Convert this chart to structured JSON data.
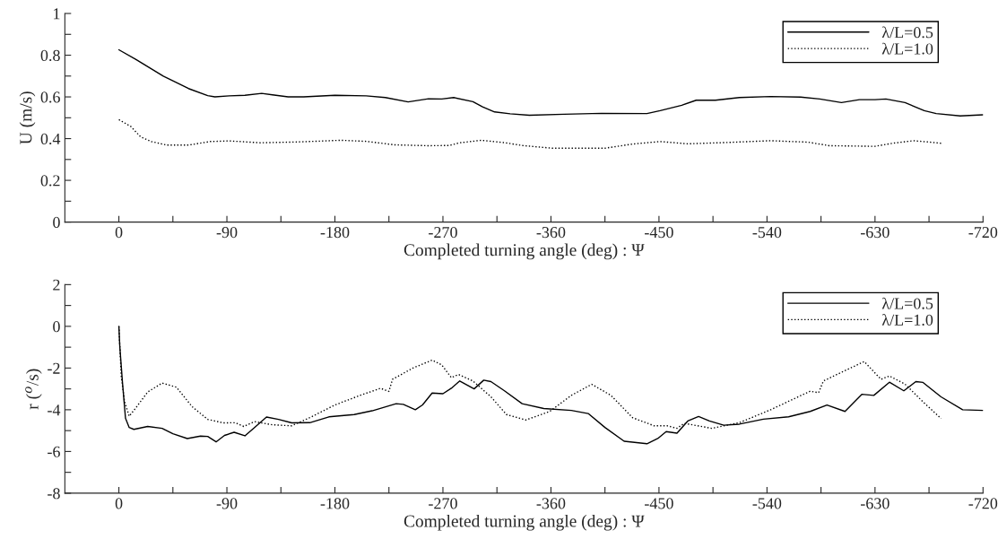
{
  "chart_data": [
    {
      "type": "line",
      "xlabel": "Completed turning angle (deg) : Ψ",
      "ylabel": "U (m/s)",
      "legend": "top right",
      "xlim": [
        45,
        -720
      ],
      "xticks": [
        0,
        {
          "value": -45,
          "label": null
        },
        -90,
        {
          "value": -135,
          "label": null
        },
        -180,
        {
          "value": -225,
          "label": null
        },
        -270,
        {
          "value": -315,
          "label": null
        },
        -360,
        {
          "value": -405,
          "label": null
        },
        -450,
        {
          "value": -495,
          "label": null
        },
        -540,
        {
          "value": -585,
          "label": null
        },
        -630,
        {
          "value": -675,
          "label": null
        },
        -720
      ],
      "ylim": [
        0,
        1
      ],
      "yticks": [
        0,
        {
          "value": 0.1,
          "label": null
        },
        0.2,
        {
          "value": 0.3,
          "label": null
        },
        0.4,
        {
          "value": 0.5,
          "label": null
        },
        0.6,
        {
          "value": 0.7,
          "label": null
        },
        0.8,
        {
          "value": 0.9,
          "label": null
        },
        1
      ],
      "series": [
        {
          "name": "λ/L=0.5",
          "color": "#000000",
          "line_style": "solid",
          "x": [
            0,
            -14,
            -37,
            -58,
            -74,
            -80,
            -92,
            -105,
            -119,
            -128,
            -141,
            -154,
            -180,
            -206,
            -222,
            -241,
            -258,
            -269,
            -279,
            -295,
            -303,
            -313,
            -326,
            -342,
            -371,
            -402,
            -440,
            -451,
            -469,
            -481,
            -497,
            -517,
            -543,
            -568,
            -584,
            -602,
            -617,
            -630,
            -639,
            -655,
            -671,
            -681,
            -701,
            -720
          ],
          "values": [
            0.826,
            0.78,
            0.7,
            0.64,
            0.606,
            0.6,
            0.605,
            0.608,
            0.617,
            0.61,
            0.6,
            0.6,
            0.608,
            0.605,
            0.597,
            0.576,
            0.591,
            0.59,
            0.597,
            0.577,
            0.552,
            0.528,
            0.519,
            0.512,
            0.517,
            0.521,
            0.52,
            0.534,
            0.56,
            0.584,
            0.584,
            0.597,
            0.602,
            0.599,
            0.59,
            0.573,
            0.587,
            0.587,
            0.59,
            0.573,
            0.534,
            0.52,
            0.509,
            0.514
          ]
        },
        {
          "name": "λ/L=1.0",
          "color": "#000000",
          "line_style": "dotted",
          "x": [
            0,
            -10,
            -18,
            -27,
            -40,
            -58,
            -76,
            -92,
            -118,
            -149,
            -185,
            -206,
            -230,
            -258,
            -275,
            -284,
            -302,
            -321,
            -336,
            -361,
            -405,
            -428,
            -451,
            -474,
            -505,
            -543,
            -574,
            -592,
            -630,
            -645,
            -662,
            -678,
            -686
          ],
          "values": [
            0.491,
            0.458,
            0.409,
            0.386,
            0.369,
            0.369,
            0.386,
            0.389,
            0.38,
            0.384,
            0.392,
            0.387,
            0.37,
            0.366,
            0.367,
            0.38,
            0.392,
            0.381,
            0.367,
            0.354,
            0.354,
            0.374,
            0.386,
            0.375,
            0.381,
            0.39,
            0.383,
            0.366,
            0.363,
            0.378,
            0.39,
            0.382,
            0.377
          ]
        }
      ]
    },
    {
      "type": "line",
      "xlabel": "Completed turning angle (deg) : Ψ",
      "ylabel": "r ($^{o}$/s)",
      "legend": "top right",
      "xlim": [
        45,
        -720
      ],
      "xticks": [
        0,
        {
          "value": -45,
          "label": null
        },
        -90,
        {
          "value": -135,
          "label": null
        },
        -180,
        {
          "value": -225,
          "label": null
        },
        -270,
        {
          "value": -315,
          "label": null
        },
        -360,
        {
          "value": -405,
          "label": null
        },
        -450,
        {
          "value": -495,
          "label": null
        },
        -540,
        {
          "value": -585,
          "label": null
        },
        -630,
        {
          "value": -675,
          "label": null
        },
        -720
      ],
      "ylim": [
        -8,
        2
      ],
      "yticks": [
        -8,
        {
          "value": -7,
          "label": null
        },
        -6,
        {
          "value": -5,
          "label": null
        },
        -4,
        {
          "value": -3,
          "label": null
        },
        -2,
        {
          "value": -1,
          "label": null
        },
        0,
        {
          "value": 1,
          "label": null
        },
        2
      ],
      "series": [
        {
          "name": "λ/L=0.5",
          "color": "#000000",
          "line_style": "solid",
          "x": [
            0,
            -0.8,
            -3,
            -5.5,
            -8.6,
            -12.5,
            -24,
            -36,
            -45,
            -57,
            -68,
            -74,
            -81,
            -88,
            -96,
            -105,
            -113,
            -123,
            -133,
            -144,
            -159,
            -175,
            -196,
            -211,
            -231,
            -237,
            -247,
            -253,
            -261,
            -270,
            -277,
            -284,
            -296,
            -304,
            -310,
            -321,
            -336,
            -354,
            -377,
            -391,
            -405,
            -421,
            -440,
            -449,
            -456,
            -465,
            -474,
            -483,
            -492,
            -504,
            -517,
            -537,
            -558,
            -576,
            -590,
            -605,
            -619,
            -629,
            -642,
            -654,
            -664,
            -670,
            -685,
            -703,
            -720
          ],
          "values": [
            0,
            -1.0,
            -2.7,
            -4.4,
            -4.85,
            -4.94,
            -4.8,
            -4.89,
            -5.15,
            -5.38,
            -5.26,
            -5.28,
            -5.54,
            -5.23,
            -5.08,
            -5.25,
            -4.85,
            -4.35,
            -4.46,
            -4.63,
            -4.62,
            -4.34,
            -4.23,
            -4.05,
            -3.71,
            -3.74,
            -4.0,
            -3.77,
            -3.2,
            -3.23,
            -2.97,
            -2.62,
            -3.0,
            -2.58,
            -2.65,
            -3.08,
            -3.71,
            -3.94,
            -4.03,
            -4.18,
            -4.85,
            -5.51,
            -5.63,
            -5.38,
            -5.05,
            -5.12,
            -4.54,
            -4.32,
            -4.54,
            -4.74,
            -4.69,
            -4.45,
            -4.34,
            -4.08,
            -3.77,
            -4.08,
            -3.26,
            -3.31,
            -2.68,
            -3.09,
            -2.65,
            -2.69,
            -3.38,
            -4.0,
            -4.03
          ]
        },
        {
          "name": "λ/L=1.0",
          "color": "#000000",
          "line_style": "dotted",
          "x": [
            0,
            -2,
            -4.7,
            -8.6,
            -14,
            -24,
            -36,
            -48,
            -61,
            -74,
            -87,
            -97,
            -104,
            -113,
            -128,
            -144,
            -159,
            -180,
            -201,
            -218,
            -225,
            -228,
            -245,
            -261,
            -269,
            -277,
            -283,
            -295,
            -310,
            -323,
            -339,
            -359,
            -377,
            -394,
            -410,
            -428,
            -446,
            -457,
            -465,
            -471,
            -494,
            -517,
            -543,
            -576,
            -583,
            -587,
            -604,
            -621,
            -635,
            -642,
            -655,
            -670,
            -685
          ],
          "values": [
            0,
            -2.4,
            -3.6,
            -4.31,
            -3.92,
            -3.15,
            -2.72,
            -2.92,
            -3.85,
            -4.46,
            -4.63,
            -4.62,
            -4.8,
            -4.57,
            -4.72,
            -4.77,
            -4.38,
            -3.77,
            -3.31,
            -2.97,
            -3.12,
            -2.54,
            -2.0,
            -1.62,
            -1.85,
            -2.46,
            -2.31,
            -2.62,
            -3.38,
            -4.23,
            -4.49,
            -4.08,
            -3.31,
            -2.78,
            -3.31,
            -4.38,
            -4.77,
            -4.77,
            -4.89,
            -4.65,
            -4.89,
            -4.62,
            -4.0,
            -3.11,
            -3.18,
            -2.62,
            -2.15,
            -1.69,
            -2.54,
            -2.38,
            -2.77,
            -3.62,
            -4.42
          ]
        }
      ]
    }
  ]
}
